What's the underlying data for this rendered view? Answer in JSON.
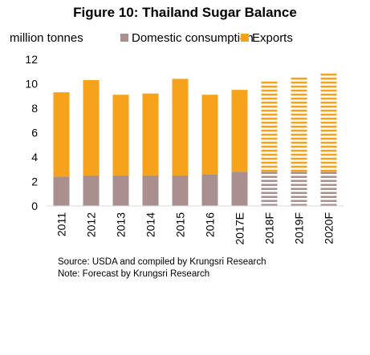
{
  "chart_data": {
    "type": "bar",
    "stacked": true,
    "title": "Figure 10: Thailand Sugar Balance",
    "ylabel": "million tonnes",
    "xlabel": "",
    "categories": [
      "2011",
      "2012",
      "2013",
      "2014",
      "2015",
      "2016",
      "2017E",
      "2018F",
      "2019F",
      "2020F"
    ],
    "forecast_categories": [
      "2018F",
      "2019F",
      "2020F"
    ],
    "series": [
      {
        "name": "Domestic consumption",
        "color": "#a9908f",
        "values": [
          2.4,
          2.5,
          2.5,
          2.5,
          2.5,
          2.6,
          2.8,
          2.8,
          2.8,
          2.8
        ]
      },
      {
        "name": "Exports",
        "color": "#f7a21b",
        "values": [
          6.9,
          7.8,
          6.6,
          6.7,
          7.9,
          6.5,
          6.7,
          7.4,
          7.8,
          8.2
        ]
      }
    ],
    "ylim": [
      0,
      12
    ],
    "yticks": [
      0,
      2,
      4,
      6,
      8,
      10,
      12
    ],
    "grid": false,
    "legend_position": "top"
  },
  "notes": {
    "source": "Source:  USDA and compiled by Krungsri Research",
    "forecast": "Note: Forecast by Krungsri Research"
  }
}
